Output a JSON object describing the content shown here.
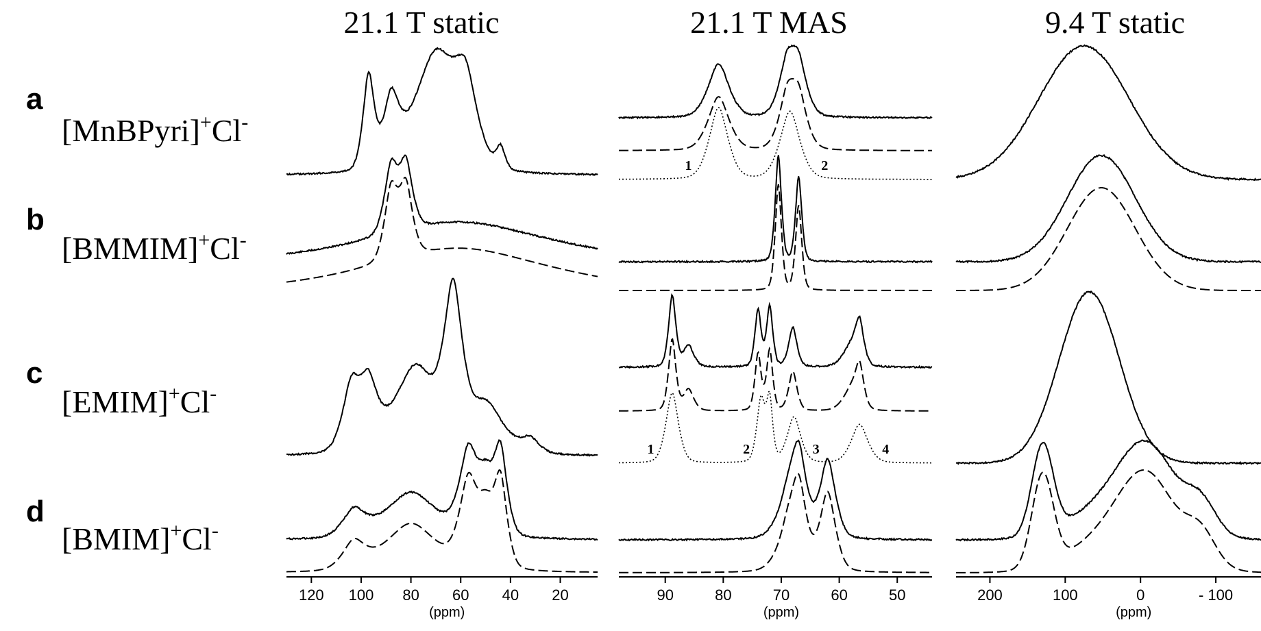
{
  "chart_data": [
    {
      "type": "line",
      "title": "21.1 T static",
      "xlabel": "(ppm)",
      "xlim": [
        130,
        5
      ],
      "xticks": [
        120,
        100,
        80,
        60,
        40,
        20
      ],
      "xtick_labels": [
        "120",
        "100",
        "80",
        "60",
        "40",
        "20"
      ],
      "rows": {
        "a": {
          "series": [
            {
              "style": "solid",
              "peaks": [
                [
                  97,
                  0.78,
                  2.5
                ],
                [
                  88,
                  0.52,
                  3.5
                ],
                [
                  70,
                  1.0,
                  10
                ],
                [
                  58,
                  0.55,
                  5
                ],
                [
                  44,
                  0.18,
                  2
                ]
              ]
            }
          ]
        },
        "b": {
          "series": [
            {
              "style": "solid",
              "peaks": [
                [
                  88,
                  0.92,
                  3
                ],
                [
                  82,
                  0.92,
                  3
                ],
                [
                  60,
                  0.55,
                  40
                ]
              ]
            },
            {
              "style": "dashed",
              "peaks": [
                [
                  88,
                  0.92,
                  3
                ],
                [
                  82,
                  0.92,
                  3
                ],
                [
                  60,
                  0.55,
                  40
                ]
              ]
            }
          ]
        },
        "c": {
          "series": [
            {
              "style": "solid",
              "peaks": [
                [
                  104,
                  0.45,
                  4
                ],
                [
                  97,
                  0.42,
                  4
                ],
                [
                  78,
                  0.62,
                  10
                ],
                [
                  63,
                  1.0,
                  4
                ],
                [
                  50,
                  0.35,
                  8
                ],
                [
                  32,
                  0.1,
                  4
                ]
              ]
            }
          ]
        },
        "d": {
          "series": [
            {
              "style": "solid",
              "peaks": [
                [
                  103,
                  0.3,
                  5
                ],
                [
                  80,
                  0.55,
                  12
                ],
                [
                  57,
                  0.92,
                  4
                ],
                [
                  50,
                  0.6,
                  4
                ],
                [
                  44,
                  0.95,
                  3
                ]
              ]
            },
            {
              "style": "dashed",
              "peaks": [
                [
                  103,
                  0.3,
                  5
                ],
                [
                  80,
                  0.55,
                  12
                ],
                [
                  57,
                  0.92,
                  4
                ],
                [
                  50,
                  0.6,
                  4
                ],
                [
                  44,
                  0.95,
                  3
                ]
              ]
            }
          ]
        }
      }
    },
    {
      "type": "line",
      "title": "21.1 T MAS",
      "xlabel": "(ppm)",
      "xlim": [
        98,
        44
      ],
      "xticks": [
        90,
        80,
        70,
        60,
        50
      ],
      "xtick_labels": [
        "90",
        "80",
        "70",
        "60",
        "50"
      ],
      "rows": {
        "a": {
          "series": [
            {
              "style": "solid",
              "peaks": [
                [
                  80.8,
                  1.0,
                  2.0
                ],
                [
                  69,
                  0.9,
                  1.6
                ],
                [
                  67,
                  0.9,
                  1.6
                ]
              ]
            },
            {
              "style": "dashed",
              "peaks": [
                [
                  80.8,
                  1.0,
                  2.0
                ],
                [
                  69,
                  0.9,
                  1.6
                ],
                [
                  67,
                  0.9,
                  1.6
                ]
              ]
            },
            {
              "style": "dotted",
              "peaks": [
                [
                  80.8,
                  1.0,
                  1.8
                ],
                [
                  68.5,
                  0.95,
                  1.9
                ]
              ]
            }
          ],
          "peak_labels": [
            {
              "text": "1",
              "x": 86
            },
            {
              "text": "2",
              "x": 62.5
            }
          ]
        },
        "b": {
          "series": [
            {
              "style": "solid",
              "peaks": [
                [
                  70.5,
                  1.0,
                  0.6
                ],
                [
                  67,
                  0.8,
                  0.6
                ]
              ]
            },
            {
              "style": "dashed",
              "peaks": [
                [
                  70.5,
                  1.0,
                  0.6
                ],
                [
                  67,
                  0.8,
                  0.6
                ]
              ]
            }
          ]
        },
        "c": {
          "series": [
            {
              "style": "solid",
              "peaks": [
                [
                  88.8,
                  1.0,
                  0.7
                ],
                [
                  86,
                  0.3,
                  1
                ],
                [
                  74,
                  0.8,
                  0.6
                ],
                [
                  72,
                  0.85,
                  0.6
                ],
                [
                  68,
                  0.55,
                  0.8
                ],
                [
                  56.5,
                  0.55,
                  0.8
                ],
                [
                  58,
                  0.3,
                  1.5
                ]
              ]
            },
            {
              "style": "dashed",
              "peaks": [
                [
                  88.8,
                  1.0,
                  0.7
                ],
                [
                  86,
                  0.3,
                  1
                ],
                [
                  74,
                  0.8,
                  0.6
                ],
                [
                  72,
                  0.85,
                  0.6
                ],
                [
                  68,
                  0.55,
                  0.8
                ],
                [
                  56.5,
                  0.55,
                  0.8
                ],
                [
                  58,
                  0.3,
                  1.5
                ]
              ]
            },
            {
              "style": "dotted",
              "peaks": [
                [
                  88.8,
                  1.0,
                  1.2
                ],
                [
                  73.5,
                  0.9,
                  0.8
                ],
                [
                  72,
                  0.85,
                  0.6
                ],
                [
                  67.8,
                  0.65,
                  1.3
                ],
                [
                  56.5,
                  0.55,
                  1.6
                ]
              ]
            }
          ],
          "peak_labels": [
            {
              "text": "1",
              "x": 92.5
            },
            {
              "text": "2",
              "x": 76
            },
            {
              "text": "3",
              "x": 64
            },
            {
              "text": "4",
              "x": 52
            }
          ]
        },
        "d": {
          "series": [
            {
              "style": "solid",
              "peaks": [
                [
                  67,
                  0.9,
                  1.5
                ],
                [
                  62,
                  0.9,
                  1.5
                ],
                [
                  69,
                  0.4,
                  2
                ]
              ]
            },
            {
              "style": "dashed",
              "peaks": [
                [
                  67,
                  0.9,
                  1.5
                ],
                [
                  62,
                  0.9,
                  1.5
                ],
                [
                  69,
                  0.4,
                  2
                ]
              ]
            }
          ]
        }
      }
    },
    {
      "type": "line",
      "title": "9.4 T static",
      "xlabel": "(ppm)",
      "xlim": [
        245,
        -160
      ],
      "xticks": [
        200,
        100,
        0,
        -100
      ],
      "xtick_labels": [
        "200",
        "100",
        "0",
        "- 100"
      ],
      "rows": {
        "a": {
          "series": [
            {
              "style": "solid",
              "peaks": [
                [
                  75,
                  1.0,
                  60
                ]
              ]
            }
          ]
        },
        "b": {
          "series": [
            {
              "style": "solid",
              "peaks": [
                [
                  52,
                  1.0,
                  45
                ]
              ]
            },
            {
              "style": "dashed",
              "peaks": [
                [
                  52,
                  1.0,
                  45
                ]
              ]
            }
          ]
        },
        "c": {
          "series": [
            {
              "style": "solid",
              "peaks": [
                [
                  68,
                  1.0,
                  40
                ]
              ]
            }
          ]
        },
        "d": {
          "series": [
            {
              "style": "solid",
              "peaks": [
                [
                  130,
                  0.9,
                  14
                ],
                [
                  20,
                  0.45,
                  60
                ],
                [
                  -10,
                  0.6,
                  35
                ],
                [
                  -80,
                  0.3,
                  20
                ]
              ]
            },
            {
              "style": "dashed",
              "peaks": [
                [
                  130,
                  0.9,
                  14
                ],
                [
                  20,
                  0.45,
                  60
                ],
                [
                  -10,
                  0.6,
                  35
                ],
                [
                  -80,
                  0.3,
                  20
                ]
              ]
            }
          ]
        }
      }
    }
  ],
  "samples": [
    {
      "letter": "a",
      "name": "[MnBPyri]",
      "charge": "+",
      "anion": "Cl",
      "anion_charge": "-"
    },
    {
      "letter": "b",
      "name": "[BMMIM]",
      "charge": "+",
      "anion": "Cl",
      "anion_charge": "-"
    },
    {
      "letter": "c",
      "name": "[EMIM]",
      "charge": "+",
      "anion": "Cl",
      "anion_charge": "-"
    },
    {
      "letter": "d",
      "name": "[BMIM]",
      "charge": "+",
      "anion": "Cl",
      "anion_charge": "-"
    }
  ]
}
